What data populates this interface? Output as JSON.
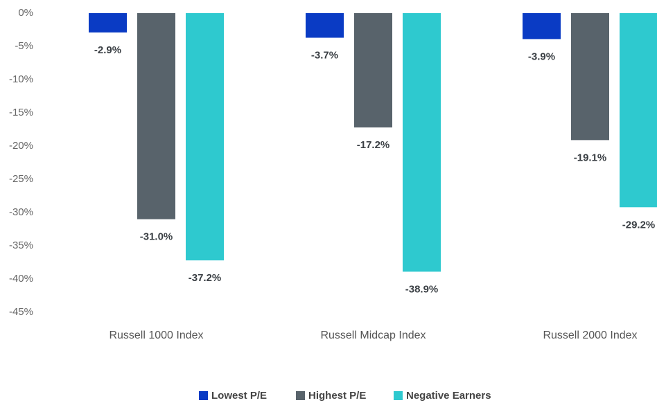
{
  "chart_data": {
    "type": "bar",
    "categories": [
      "Russell 1000 Index",
      "Russell Midcap Index",
      "Russell 2000 Index"
    ],
    "series": [
      {
        "name": "Lowest P/E",
        "color": "#0a3bc4",
        "values": [
          -2.9,
          -3.7,
          -3.9
        ],
        "value_labels": [
          "-2.9%",
          "-3.7%",
          "-3.9%"
        ]
      },
      {
        "name": "Highest P/E",
        "color": "#58636b",
        "values": [
          -31.0,
          -17.2,
          -19.1
        ],
        "value_labels": [
          "-31.0%",
          "-17.2%",
          "-19.1%"
        ]
      },
      {
        "name": "Negative Earners",
        "color": "#2ec9cf",
        "values": [
          -37.2,
          -38.9,
          -29.2
        ],
        "value_labels": [
          "-37.2%",
          "-38.9%",
          "-29.2%"
        ]
      }
    ],
    "ylim": [
      -45,
      0
    ],
    "yticks": [
      {
        "value": 0,
        "label": "0%"
      },
      {
        "value": -5,
        "label": "-5%"
      },
      {
        "value": -10,
        "label": "-10%"
      },
      {
        "value": -15,
        "label": "-15%"
      },
      {
        "value": -20,
        "label": "-20%"
      },
      {
        "value": -25,
        "label": "-25%"
      },
      {
        "value": -30,
        "label": "-30%"
      },
      {
        "value": -35,
        "label": "-35%"
      },
      {
        "value": -40,
        "label": "-40%"
      },
      {
        "value": -45,
        "label": "-45%"
      }
    ]
  }
}
